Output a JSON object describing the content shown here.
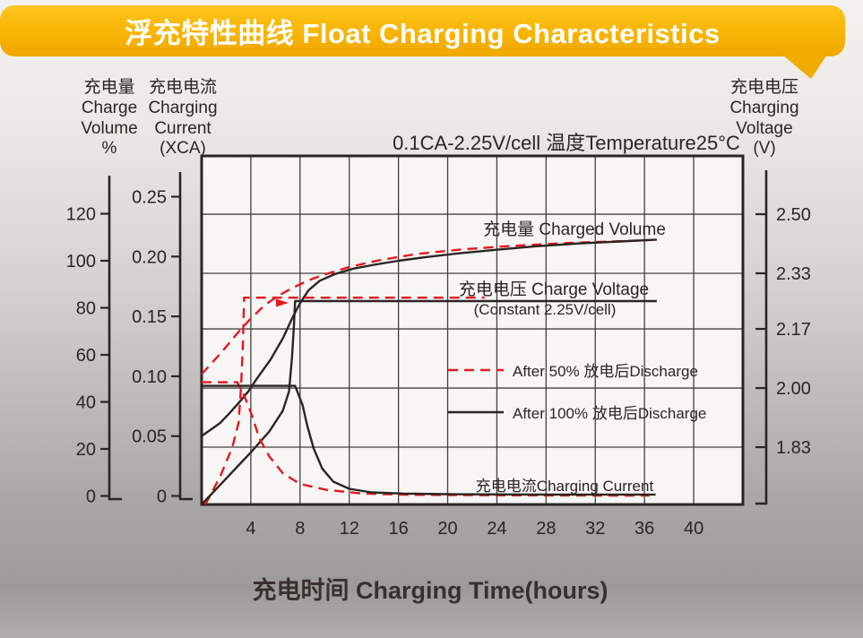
{
  "banner": {
    "title": "浮充特性曲线 Float Charging Characteristics",
    "color": "#f7b403"
  },
  "chart_data": {
    "type": "line",
    "title": "0.1CA-2.25V/cell  温度Temperature25°C",
    "xlabel": "充电时间 Charging Time(hours)",
    "x_range_hours": [
      0,
      44
    ],
    "grid": "on",
    "x_ticks": [
      {
        "label": "4",
        "value": 4
      },
      {
        "label": "8",
        "value": 8
      },
      {
        "label": "12",
        "value": 12
      },
      {
        "label": "16",
        "value": 16
      },
      {
        "label": "20",
        "value": 20
      },
      {
        "label": "24",
        "value": 24
      },
      {
        "label": "28",
        "value": 28
      },
      {
        "label": "32",
        "value": 32
      },
      {
        "label": "36",
        "value": 36
      },
      {
        "label": "40",
        "value": 40
      }
    ],
    "axes": {
      "charge_volume": {
        "label_lines": [
          "充电量",
          "Charge",
          "Volume",
          "%"
        ],
        "ticks": [
          {
            "label": "0",
            "value": 0
          },
          {
            "label": "20",
            "value": 20
          },
          {
            "label": "40",
            "value": 40
          },
          {
            "label": "60",
            "value": 60
          },
          {
            "label": "80",
            "value": 80
          },
          {
            "label": "100",
            "value": 100
          },
          {
            "label": "120",
            "value": 120
          }
        ]
      },
      "charging_current": {
        "label_lines": [
          "充电电流",
          "Charging",
          "Current",
          "(XCA)"
        ],
        "ticks": [
          {
            "label": "0",
            "value": 0
          },
          {
            "label": "0.05",
            "value": 0.05
          },
          {
            "label": "0.10",
            "value": 0.1
          },
          {
            "label": "0.15",
            "value": 0.15
          },
          {
            "label": "0.20",
            "value": 0.2
          },
          {
            "label": "0.25",
            "value": 0.25
          }
        ]
      },
      "charging_voltage": {
        "label_lines": [
          "充电电压",
          "Charging",
          "Voltage",
          "(V)"
        ],
        "ticks": [
          {
            "label": "1.83",
            "value": 1.83
          },
          {
            "label": "2.00",
            "value": 2.0
          },
          {
            "label": "2.17",
            "value": 2.17
          },
          {
            "label": "2.33",
            "value": 2.33
          },
          {
            "label": "2.50",
            "value": 2.5
          }
        ]
      }
    },
    "annotations": {
      "charged_volume_label": "充电量 Charged Volume",
      "charge_voltage_label": "充电电压 Charge Voltage",
      "charge_voltage_sub": "(Constant 2.25V/cell)",
      "charging_current_label": "充电电流Charging Current"
    },
    "legend": [
      {
        "swatch": "dashed-red",
        "label": "After 50% 放电后Discharge"
      },
      {
        "swatch": "solid-black",
        "label": "After 100% 放电后Discharge"
      }
    ],
    "colors": {
      "red": "#e4181f",
      "black": "#2b2522"
    },
    "series": [
      {
        "name": "charged-volume-after-50-discharge",
        "axis": "volume",
        "style": "dashed-red",
        "points": [
          [
            0,
            51.8
          ],
          [
            0.8,
            56.4
          ],
          [
            1.6,
            61
          ],
          [
            2.4,
            66
          ],
          [
            3.2,
            71
          ],
          [
            4,
            75.4
          ],
          [
            4.8,
            79.5
          ],
          [
            5.5,
            82.5
          ],
          [
            6.2,
            85
          ],
          [
            6.9,
            87.1
          ],
          [
            7.6,
            89
          ],
          [
            8.3,
            90.7
          ],
          [
            9,
            92.3
          ],
          [
            10.5,
            95
          ],
          [
            12.2,
            97.6
          ],
          [
            14.4,
            100.2
          ],
          [
            17.5,
            102.9
          ],
          [
            21.1,
            104.8
          ],
          [
            25.1,
            106.3
          ],
          [
            29.5,
            107.5
          ],
          [
            33.9,
            108.3
          ],
          [
            36.2,
            108.7
          ]
        ]
      },
      {
        "name": "charged-volume-after-100-discharge",
        "axis": "volume",
        "style": "solid-black",
        "points": [
          [
            0,
            25.5
          ],
          [
            1.5,
            31
          ],
          [
            2.2,
            34.8
          ],
          [
            3,
            39.5
          ],
          [
            3.8,
            44.5
          ],
          [
            4.5,
            50
          ],
          [
            5.6,
            58
          ],
          [
            6.6,
            67
          ],
          [
            7.4,
            76
          ],
          [
            8,
            82
          ],
          [
            8.7,
            87.5
          ],
          [
            9.6,
            91.5
          ],
          [
            10.8,
            94.3
          ],
          [
            12.3,
            96.6
          ],
          [
            14,
            98.3
          ],
          [
            16,
            100
          ],
          [
            18.3,
            101.6
          ],
          [
            21,
            103.2
          ],
          [
            24,
            104.7
          ],
          [
            27.3,
            106.2
          ],
          [
            30.8,
            107.4
          ],
          [
            34,
            108.2
          ],
          [
            37,
            109
          ]
        ]
      },
      {
        "name": "charge-voltage-after-50-discharge",
        "axis": "voltage",
        "style": "dashed-red",
        "points": [
          [
            0.3,
            1.665
          ],
          [
            1.5,
            1.745
          ],
          [
            2.5,
            1.83
          ],
          [
            3.0,
            1.9
          ],
          [
            3.2,
            2.0
          ],
          [
            3.35,
            2.12
          ],
          [
            3.45,
            2.26
          ],
          [
            23,
            2.26
          ]
        ]
      },
      {
        "name": "charge-voltage-after-100-discharge",
        "axis": "voltage",
        "style": "solid-black",
        "points": [
          [
            0,
            1.665
          ],
          [
            2,
            1.74
          ],
          [
            4,
            1.815
          ],
          [
            5.5,
            1.875
          ],
          [
            6.6,
            1.935
          ],
          [
            7.1,
            1.99
          ],
          [
            7.35,
            2.09
          ],
          [
            7.5,
            2.18
          ],
          [
            7.6,
            2.25
          ],
          [
            37,
            2.25
          ]
        ]
      },
      {
        "name": "charging-current-after-50-discharge",
        "axis": "current",
        "style": "dashed-red",
        "points": [
          [
            0,
            0.095
          ],
          [
            2.9,
            0.095
          ],
          [
            3.5,
            0.083
          ],
          [
            4.1,
            0.067
          ],
          [
            4.7,
            0.048
          ],
          [
            5.5,
            0.033
          ],
          [
            6.6,
            0.019
          ],
          [
            8,
            0.01
          ],
          [
            10.2,
            0.005
          ],
          [
            13.1,
            0.002
          ],
          [
            16.8,
            0.001
          ],
          [
            25,
            0.0005
          ],
          [
            36.4,
            0.0003
          ]
        ]
      },
      {
        "name": "charging-current-after-100-discharge",
        "axis": "current",
        "style": "solid-black",
        "points": [
          [
            0,
            0.092
          ],
          [
            7.6,
            0.092
          ],
          [
            8.2,
            0.076
          ],
          [
            8.6,
            0.058
          ],
          [
            9.1,
            0.04
          ],
          [
            9.8,
            0.023
          ],
          [
            10.7,
            0.012
          ],
          [
            12,
            0.006
          ],
          [
            13.8,
            0.003
          ],
          [
            16.4,
            0.002
          ],
          [
            20,
            0.0015
          ],
          [
            28,
            0.0012
          ],
          [
            36.9,
            0.0012
          ]
        ]
      }
    ]
  }
}
